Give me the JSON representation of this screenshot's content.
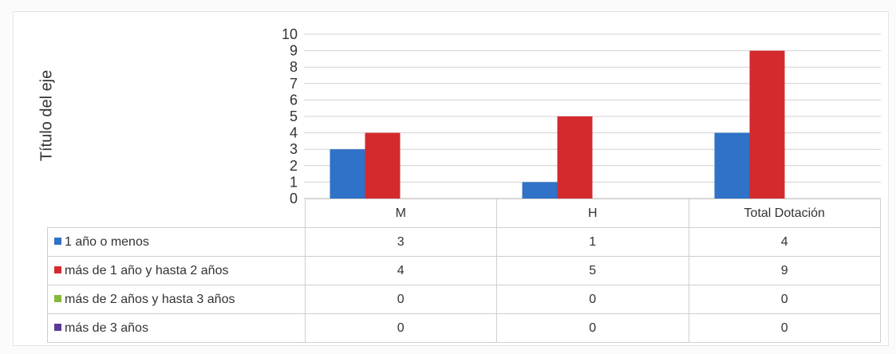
{
  "chart_data": {
    "type": "bar",
    "categories": [
      "M",
      "H",
      "Total Dotación"
    ],
    "ylabel": "Título del eje",
    "ylim": [
      0,
      10
    ],
    "yticks": [
      0,
      1,
      2,
      3,
      4,
      5,
      6,
      7,
      8,
      9,
      10
    ],
    "grid": true,
    "legend": "data table",
    "series": [
      {
        "name": "1 año o menos",
        "color": "#2f72c7",
        "values": [
          3,
          1,
          4
        ]
      },
      {
        "name": "más de 1 año y hasta 2 años",
        "color": "#d42a2e",
        "values": [
          4,
          5,
          9
        ]
      },
      {
        "name": "más de 2 años y hasta 3 años",
        "color": "#86b83c",
        "values": [
          0,
          0,
          0
        ]
      },
      {
        "name": "más de 3 años",
        "color": "#5b3a96",
        "values": [
          0,
          0,
          0
        ]
      }
    ]
  }
}
